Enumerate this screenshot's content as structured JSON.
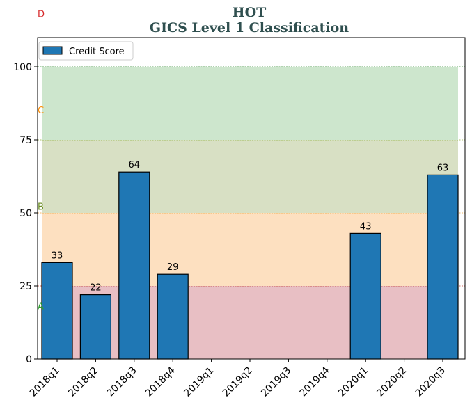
{
  "chart_data": {
    "type": "bar",
    "title": "HOT",
    "subtitle": "GICS Level 1 Classification",
    "categories": [
      "2018q1",
      "2018q2",
      "2018q3",
      "2018q4",
      "2019q1",
      "2019q2",
      "2019q3",
      "2019q4",
      "2020q1",
      "2020q2",
      "2020q3"
    ],
    "series": [
      {
        "name": "Credit Score",
        "values": [
          33,
          22,
          64,
          29,
          null,
          null,
          null,
          null,
          43,
          null,
          63
        ],
        "color": "#1f77b4"
      }
    ],
    "ylim": [
      0,
      110
    ],
    "yticks": [
      0,
      25,
      50,
      75,
      100
    ],
    "bands": [
      {
        "from": 0,
        "to": 25,
        "color": "#e8bfc4",
        "line_color": "#c0392b"
      },
      {
        "from": 25,
        "to": 50,
        "color": "#fde0c0",
        "line_color": "#f0a030"
      },
      {
        "from": 50,
        "to": 75,
        "color": "#d8e0c4",
        "line_color": "#8fae3a"
      },
      {
        "from": 75,
        "to": 100,
        "color": "#cde6cd",
        "line_color": "#2e8b2e"
      }
    ],
    "ratings": [
      {
        "label": "A",
        "value": 18,
        "color": "#2ca02c"
      },
      {
        "label": "B",
        "value": 52,
        "color": "#6b8e23"
      },
      {
        "label": "C",
        "value": 85,
        "color": "#ff8c00"
      },
      {
        "label": "D",
        "value": 118,
        "color": "#d62728"
      }
    ],
    "legend_position": "top-left",
    "grid": false
  }
}
